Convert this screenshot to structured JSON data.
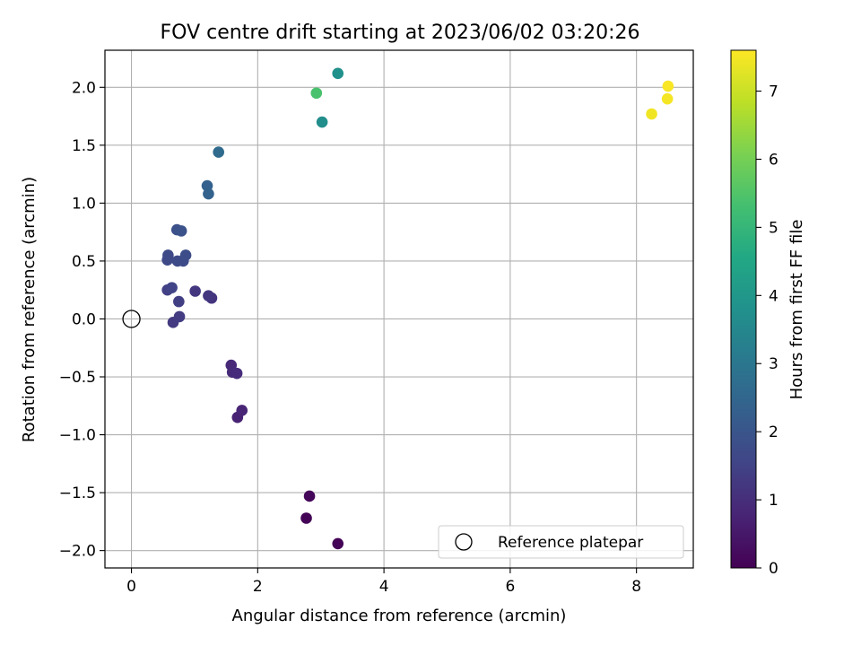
{
  "chart_data": {
    "type": "scatter",
    "title": "FOV centre drift starting at 2023/06/02 03:20:26",
    "xlabel": "Angular distance from reference (arcmin)",
    "ylabel": "Rotation from reference (arcmin)",
    "xlim": [
      -0.42,
      8.9
    ],
    "ylim": [
      -2.15,
      2.32
    ],
    "x_ticks": [
      "0",
      "2",
      "4",
      "6",
      "8"
    ],
    "y_ticks": [
      "−2.0",
      "−1.5",
      "−1.0",
      "−0.5",
      "0.0",
      "0.5",
      "1.0",
      "1.5",
      "2.0"
    ],
    "grid": true,
    "legend": {
      "placement": "lower-right",
      "label": "Reference platepar"
    },
    "reference_point": {
      "x": 0,
      "y": 0
    },
    "colorbar": {
      "label": "Hours from first FF file",
      "range": [
        0,
        7.6
      ],
      "ticks": [
        "0",
        "1",
        "2",
        "3",
        "4",
        "5",
        "6",
        "7"
      ],
      "colormap": "viridis"
    },
    "points": [
      {
        "x": 3.27,
        "y": -1.94,
        "c": 0.05
      },
      {
        "x": 2.77,
        "y": -1.72,
        "c": 0.08
      },
      {
        "x": 2.82,
        "y": -1.53,
        "c": 0.12
      },
      {
        "x": 1.68,
        "y": -0.85,
        "c": 0.72
      },
      {
        "x": 1.75,
        "y": -0.79,
        "c": 0.78
      },
      {
        "x": 1.58,
        "y": -0.4,
        "c": 0.88
      },
      {
        "x": 1.6,
        "y": -0.46,
        "c": 0.92
      },
      {
        "x": 1.67,
        "y": -0.47,
        "c": 0.95
      },
      {
        "x": 1.27,
        "y": 0.18,
        "c": 1.15
      },
      {
        "x": 1.22,
        "y": 0.2,
        "c": 1.18
      },
      {
        "x": 1.01,
        "y": 0.24,
        "c": 1.22
      },
      {
        "x": 0.66,
        "y": -0.03,
        "c": 1.28
      },
      {
        "x": 0.76,
        "y": 0.02,
        "c": 1.32
      },
      {
        "x": 0.75,
        "y": 0.15,
        "c": 1.38
      },
      {
        "x": 0.57,
        "y": 0.25,
        "c": 1.45
      },
      {
        "x": 0.64,
        "y": 0.27,
        "c": 1.55
      },
      {
        "x": 0.57,
        "y": 0.51,
        "c": 1.65
      },
      {
        "x": 0.58,
        "y": 0.55,
        "c": 1.7
      },
      {
        "x": 0.73,
        "y": 0.5,
        "c": 1.72
      },
      {
        "x": 0.82,
        "y": 0.5,
        "c": 1.75
      },
      {
        "x": 0.86,
        "y": 0.55,
        "c": 1.78
      },
      {
        "x": 0.72,
        "y": 0.77,
        "c": 1.85
      },
      {
        "x": 0.79,
        "y": 0.76,
        "c": 1.9
      },
      {
        "x": 1.2,
        "y": 1.15,
        "c": 2.35
      },
      {
        "x": 1.22,
        "y": 1.08,
        "c": 2.4
      },
      {
        "x": 1.38,
        "y": 1.44,
        "c": 2.65
      },
      {
        "x": 3.02,
        "y": 1.7,
        "c": 3.7
      },
      {
        "x": 3.27,
        "y": 2.12,
        "c": 3.8
      },
      {
        "x": 2.93,
        "y": 1.95,
        "c": 5.4
      },
      {
        "x": 8.24,
        "y": 1.77,
        "c": 7.45
      },
      {
        "x": 8.49,
        "y": 1.9,
        "c": 7.5
      },
      {
        "x": 8.5,
        "y": 2.01,
        "c": 7.55
      }
    ]
  }
}
